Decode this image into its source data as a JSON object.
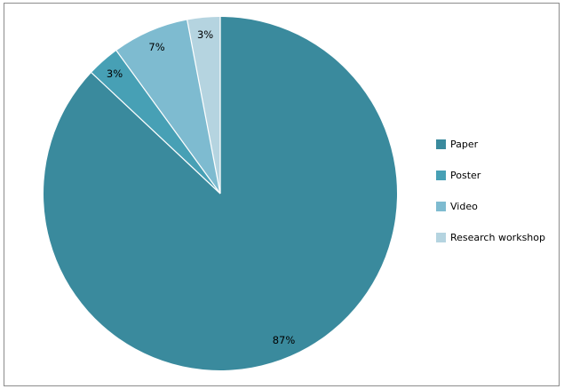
{
  "chart": {
    "background": "#FFFFFF",
    "border_color": "#8C8C8C"
  },
  "chart_data": {
    "type": "pie",
    "title": "",
    "categories": [
      "Paper",
      "Poster",
      "Video",
      "Research workshop"
    ],
    "values": [
      87,
      3,
      7,
      3
    ],
    "data_labels": [
      "87%",
      "3%",
      "7%",
      "3%"
    ],
    "colors": [
      "#3A8A9D",
      "#47A0B5",
      "#7EBBD0",
      "#B5D4E0"
    ],
    "data_label_color": "#000000",
    "separator_color": "#FFFFFF",
    "start_angle_deg": 0,
    "direction": "clockwise",
    "legend_position": "right",
    "grid": false
  },
  "legend": {
    "items": [
      {
        "label": "Paper",
        "color": "#3A8A9D"
      },
      {
        "label": "Poster",
        "color": "#47A0B5"
      },
      {
        "label": "Video",
        "color": "#7EBBD0"
      },
      {
        "label": "Research workshop",
        "color": "#B5D4E0"
      }
    ]
  }
}
